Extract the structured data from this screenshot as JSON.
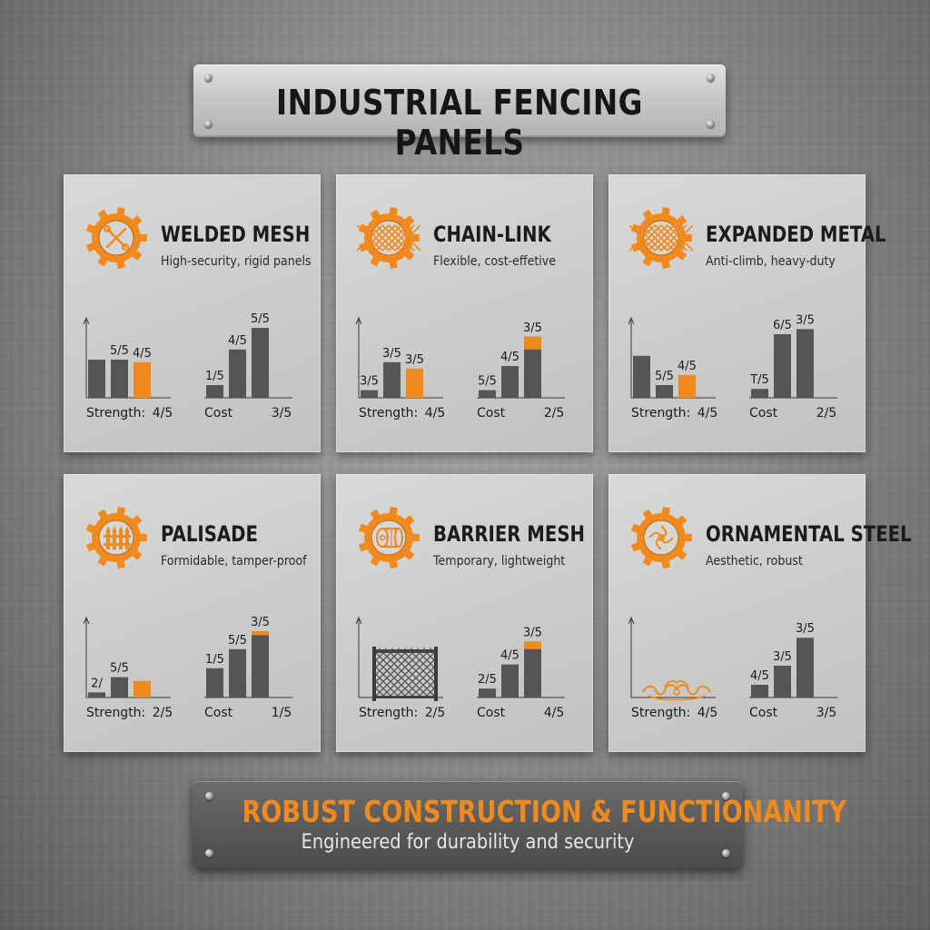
{
  "title": "INDUSTRIAL FENCING PANELS",
  "footer": {
    "title": "ROBUST CONSTRUCTION & FUNCTIONANITY",
    "subtitle": "Engineered for durability and security"
  },
  "colors": {
    "accent": "#f08a1e",
    "bar": "#555555",
    "text": "#1b1b1b"
  },
  "panels": [
    {
      "title": "WELDED MESH",
      "subtitle": "High-security, rigid panels",
      "icon": "crossed-tools-icon"
    },
    {
      "title": "CHAIN-LINK",
      "subtitle": "Flexible, cost-effetive",
      "icon": "diamond-mesh-icon"
    },
    {
      "title": "EXPANDED METAL",
      "subtitle": "Anti-climb, heavy-duty",
      "icon": "diamond-mesh-icon"
    },
    {
      "title": "PALISADE",
      "subtitle": "Formidable, tamper-proof",
      "icon": "palisade-fence-icon"
    },
    {
      "title": "BARRIER MESH",
      "subtitle": "Temporary, lightweight",
      "icon": "mesh-roll-icon"
    },
    {
      "title": "ORNAMENTAL STEEL",
      "subtitle": "Aesthetic, robust",
      "icon": "ornamental-scroll-icon"
    }
  ],
  "chart_data": [
    {
      "type": "bar",
      "panel": "WELDED MESH",
      "groups": [
        {
          "label": "Strength:",
          "total": "4/5",
          "bars": [
            {
              "label": "",
              "value": 3,
              "accent": false
            },
            {
              "label": "5/5",
              "value": 3,
              "accent": false
            },
            {
              "label": "4/5",
              "value": 2.8,
              "accent": true
            }
          ]
        },
        {
          "label": "Cost",
          "total": "3/5",
          "bars": [
            {
              "label": "1/5",
              "value": 1,
              "accent": false
            },
            {
              "label": "4/5",
              "value": 3.8,
              "accent": false
            },
            {
              "label": "5/5",
              "value": 5.5,
              "accent": false
            }
          ]
        }
      ]
    },
    {
      "type": "bar",
      "panel": "CHAIN-LINK",
      "groups": [
        {
          "label": "Strength:",
          "total": "4/5",
          "bars": [
            {
              "label": "3/5",
              "value": 0.6,
              "accent": false
            },
            {
              "label": "3/5",
              "value": 2.8,
              "accent": false
            },
            {
              "label": "3/5",
              "value": 2.3,
              "accent": true
            }
          ]
        },
        {
          "label": "Cost",
          "total": "2/5",
          "bars": [
            {
              "label": "5/5",
              "value": 0.6,
              "accent": false
            },
            {
              "label": "4/5",
              "value": 2.5,
              "accent": false
            },
            {
              "label": "3/5",
              "value": 4.8,
              "accent": false,
              "cap": 1
            }
          ]
        }
      ]
    },
    {
      "type": "bar",
      "panel": "EXPANDED METAL",
      "groups": [
        {
          "label": "Strength:",
          "total": "4/5",
          "bars": [
            {
              "label": "",
              "value": 3.3,
              "accent": false
            },
            {
              "label": "5/5",
              "value": 1,
              "accent": false
            },
            {
              "label": "4/5",
              "value": 1.8,
              "accent": true
            }
          ]
        },
        {
          "label": "Cost",
          "total": "2/5",
          "bars": [
            {
              "label": "T/5",
              "value": 0.7,
              "accent": false
            },
            {
              "label": "6/5",
              "value": 5,
              "accent": false
            },
            {
              "label": "3/5",
              "value": 5.4,
              "accent": false
            }
          ]
        }
      ]
    },
    {
      "type": "bar",
      "panel": "PALISADE",
      "groups": [
        {
          "label": "Strength:",
          "total": "2/5",
          "bars": [
            {
              "label": "2/",
              "value": 0.4,
              "accent": false
            },
            {
              "label": "5/5",
              "value": 1.6,
              "accent": false
            },
            {
              "label": "",
              "value": 1.3,
              "accent": true
            }
          ]
        },
        {
          "label": "Cost",
          "total": "1/5",
          "bars": [
            {
              "label": "1/5",
              "value": 2.3,
              "accent": false
            },
            {
              "label": "5/5",
              "value": 3.8,
              "accent": false
            },
            {
              "label": "3/5",
              "value": 5.2,
              "accent": false,
              "cap": 0.3
            }
          ]
        }
      ]
    },
    {
      "type": "bar",
      "panel": "BARRIER MESH",
      "groups": [
        {
          "label": "Strength:",
          "total": "2/5",
          "bars": []
        },
        {
          "label": "Cost",
          "total": "4/5",
          "bars": [
            {
              "label": "2/5",
              "value": 0.7,
              "accent": false
            },
            {
              "label": "4/5",
              "value": 2.6,
              "accent": false
            },
            {
              "label": "3/5",
              "value": 4.4,
              "accent": false,
              "cap": 0.6
            }
          ]
        }
      ]
    },
    {
      "type": "bar",
      "panel": "ORNAMENTAL STEEL",
      "groups": [
        {
          "label": "Strength:",
          "total": "4/5",
          "bars": []
        },
        {
          "label": "Cost",
          "total": "3/5",
          "bars": [
            {
              "label": "4/5",
              "value": 1,
              "accent": false
            },
            {
              "label": "3/5",
              "value": 2.5,
              "accent": false
            },
            {
              "label": "3/5",
              "value": 4.7,
              "accent": false
            }
          ]
        }
      ]
    }
  ]
}
